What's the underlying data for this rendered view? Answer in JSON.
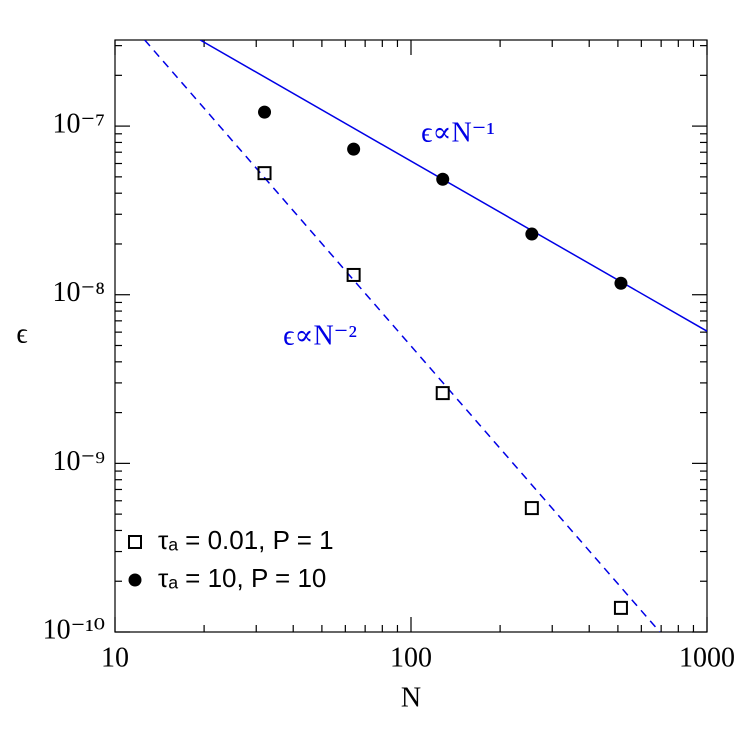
{
  "chart_data": {
    "type": "scatter",
    "x_label": "N",
    "y_label": "ϵ",
    "log_x": true,
    "log_y": true,
    "xlim": [
      10,
      1000
    ],
    "ylim": [
      1e-10,
      3.24e-07
    ],
    "xticks": [
      10,
      100,
      1000
    ],
    "yticks": [
      {
        "value": 1e-10,
        "label": "10⁻¹⁰"
      },
      {
        "value": 1e-09,
        "label": "10⁻⁹"
      },
      {
        "value": 1e-08,
        "label": "10⁻⁸"
      },
      {
        "value": 1e-07,
        "label": "10⁻⁷"
      }
    ],
    "xminorticks": [
      20,
      30,
      40,
      50,
      60,
      70,
      80,
      90,
      200,
      300,
      400,
      500,
      600,
      700,
      800,
      900
    ],
    "yminorticks": [
      2e-10,
      3e-10,
      4e-10,
      5e-10,
      6e-10,
      7e-10,
      8e-10,
      9e-10,
      2e-09,
      3e-09,
      4e-09,
      5e-09,
      6e-09,
      7e-09,
      8e-09,
      9e-09,
      2e-08,
      3e-08,
      4e-08,
      5e-08,
      6e-08,
      7e-08,
      8e-08,
      9e-08,
      2e-07,
      3e-07
    ],
    "series": [
      {
        "name": "τₐ = 0.01, P = 1",
        "marker": "square",
        "color": "#000000",
        "x": [
          32,
          64,
          128,
          256,
          512
        ],
        "values": [
          5.26e-08,
          1.31e-08,
          2.61e-09,
          5.43e-10,
          1.39e-10
        ]
      },
      {
        "name": "τₐ = 10, P = 10",
        "marker": "circle",
        "color": "#000000",
        "x": [
          32,
          64,
          128,
          256,
          512
        ],
        "values": [
          1.21e-07,
          7.3e-08,
          4.84e-08,
          2.29e-08,
          1.17e-08
        ]
      }
    ],
    "lines": [
      {
        "style": "solid",
        "color": "#0000e6",
        "x": [
          19.4,
          1000
        ],
        "values": [
          3.24e-07,
          6.08e-09
        ]
      },
      {
        "style": "dashed",
        "color": "#0000e6",
        "x": [
          12.6,
          693
        ],
        "values": [
          3.24e-07,
          1e-10
        ]
      }
    ],
    "annotations": [
      "ϵ∝N⁻¹",
      "ϵ∝N⁻²"
    ],
    "legend": "lower left"
  }
}
